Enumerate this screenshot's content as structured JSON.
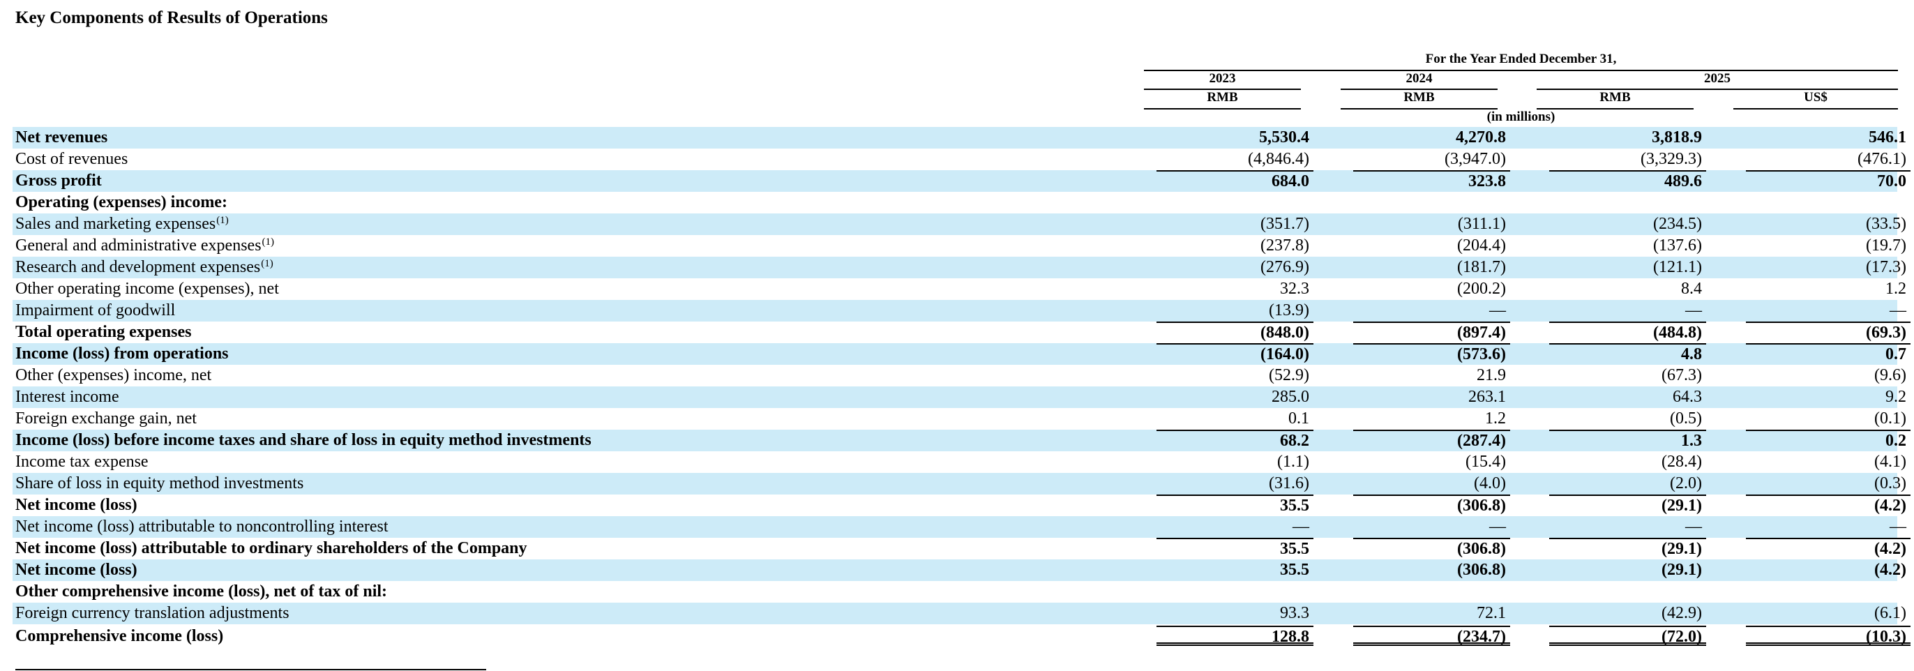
{
  "title": "Key Components of Results of Operations",
  "header": {
    "period": "For the Year Ended December 31,",
    "years": [
      "2023",
      "2024",
      "2025"
    ],
    "currencies": [
      "RMB",
      "RMB",
      "RMB",
      "US$"
    ],
    "units": "(in millions)"
  },
  "rows": [
    {
      "label": "Net revenues",
      "values": [
        "5,530.4",
        "4,270.8",
        "3,818.9",
        "546.1"
      ]
    },
    {
      "label": "Cost of revenues",
      "values": [
        "(4,846.4)",
        "(3,947.0)",
        "(3,329.3)",
        "(476.1)"
      ]
    },
    {
      "label": "Gross profit",
      "values": [
        "684.0",
        "323.8",
        "489.6",
        "70.0"
      ]
    },
    {
      "label": "Operating (expenses) income:",
      "values": [
        "",
        "",
        "",
        ""
      ]
    },
    {
      "label": "Sales and marketing expenses",
      "note": "(1)",
      "values": [
        "(351.7)",
        "(311.1)",
        "(234.5)",
        "(33.5)"
      ]
    },
    {
      "label": "General and administrative expenses",
      "note": "(1)",
      "values": [
        "(237.8)",
        "(204.4)",
        "(137.6)",
        "(19.7)"
      ]
    },
    {
      "label": "Research and development expenses",
      "note": "(1)",
      "values": [
        "(276.9)",
        "(181.7)",
        "(121.1)",
        "(17.3)"
      ]
    },
    {
      "label": "Other operating income (expenses), net",
      "values": [
        "32.3",
        "(200.2)",
        "8.4",
        "1.2"
      ]
    },
    {
      "label": "Impairment of goodwill",
      "values": [
        "(13.9)",
        "—",
        "—",
        "—"
      ]
    },
    {
      "label": "Total operating expenses",
      "values": [
        "(848.0)",
        "(897.4)",
        "(484.8)",
        "(69.3)"
      ]
    },
    {
      "label": "Income (loss) from operations",
      "values": [
        "(164.0)",
        "(573.6)",
        "4.8",
        "0.7"
      ]
    },
    {
      "label": "Other (expenses) income, net",
      "values": [
        "(52.9)",
        "21.9",
        "(67.3)",
        "(9.6)"
      ]
    },
    {
      "label": "Interest income",
      "values": [
        "285.0",
        "263.1",
        "64.3",
        "9.2"
      ]
    },
    {
      "label": "Foreign exchange gain, net",
      "values": [
        "0.1",
        "1.2",
        "(0.5)",
        "(0.1)"
      ]
    },
    {
      "label": "Income (loss) before income taxes and share of loss in equity method investments",
      "values": [
        "68.2",
        "(287.4)",
        "1.3",
        "0.2"
      ]
    },
    {
      "label": "Income tax expense",
      "values": [
        "(1.1)",
        "(15.4)",
        "(28.4)",
        "(4.1)"
      ]
    },
    {
      "label": "Share of loss in equity method investments",
      "values": [
        "(31.6)",
        "(4.0)",
        "(2.0)",
        "(0.3)"
      ]
    },
    {
      "label": "Net income (loss)",
      "values": [
        "35.5",
        "(306.8)",
        "(29.1)",
        "(4.2)"
      ]
    },
    {
      "label": "Net income (loss) attributable to noncontrolling interest",
      "values": [
        "—",
        "—",
        "—",
        "—"
      ]
    },
    {
      "label": "Net income (loss) attributable to ordinary shareholders of the Company",
      "values": [
        "35.5",
        "(306.8)",
        "(29.1)",
        "(4.2)"
      ]
    },
    {
      "label": "Net income (loss)",
      "values": [
        "35.5",
        "(306.8)",
        "(29.1)",
        "(4.2)"
      ]
    },
    {
      "label": "Other comprehensive income (loss), net of tax of nil:",
      "values": [
        "",
        "",
        "",
        ""
      ]
    },
    {
      "label": "Foreign currency translation adjustments",
      "values": [
        "93.3",
        "72.1",
        "(42.9)",
        "(6.1)"
      ]
    },
    {
      "label": "Comprehensive income (loss)",
      "values": [
        "128.8",
        "(234.7)",
        "(72.0)",
        "(10.3)"
      ]
    }
  ]
}
